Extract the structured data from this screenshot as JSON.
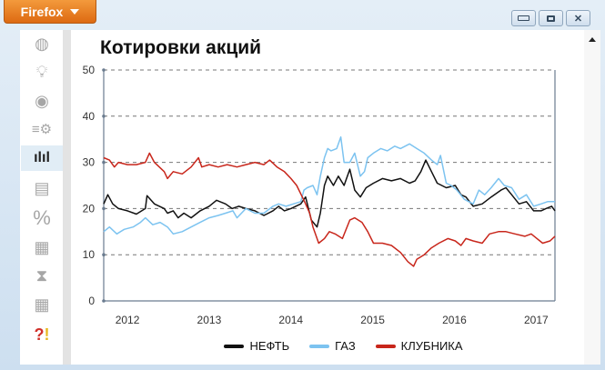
{
  "browser": {
    "menu_label": "Firefox"
  },
  "window_controls": {
    "minimize": "minimize-icon",
    "restore": "restore-icon",
    "close": "close-icon"
  },
  "sidebar": {
    "icons": [
      "globe-icon",
      "lightbulb-icon",
      "target-icon",
      "settings-list-icon",
      "bar-chart-icon",
      "document-icon",
      "percent-icon",
      "calendar-chart-icon",
      "hourglass-icon",
      "calendar-icon",
      "help-alert-icon"
    ],
    "active": 4
  },
  "colors": {
    "black": "#111111",
    "blue": "#7cc3f0",
    "red": "#c8261b",
    "accent": "#e07a1f"
  },
  "chart_data": {
    "type": "line",
    "title": "Котировки акций",
    "xlabel": "",
    "ylabel": "",
    "xlim": [
      2011.71,
      2017.23
    ],
    "ylim": [
      0,
      50
    ],
    "yticks": [
      0,
      10,
      20,
      30,
      40,
      50
    ],
    "xticks": [
      2012,
      2013,
      2014,
      2015,
      2016,
      2017
    ],
    "xtick_labels": [
      "2012",
      "2013",
      "2014",
      "2015",
      "2016",
      "2017"
    ],
    "ytick_labels": [
      "0",
      "10",
      "20",
      "30",
      "40",
      "50"
    ],
    "grid": "horizontal dashed",
    "legend_position": "bottom",
    "series": [
      {
        "name": "НЕФТЬ",
        "color": "#111111",
        "points": [
          [
            2011.71,
            21
          ],
          [
            2011.76,
            23
          ],
          [
            2011.82,
            21
          ],
          [
            2011.89,
            20
          ],
          [
            2012.0,
            19.5
          ],
          [
            2012.11,
            18.8
          ],
          [
            2012.22,
            20
          ],
          [
            2012.24,
            22.8
          ],
          [
            2012.33,
            21
          ],
          [
            2012.45,
            20
          ],
          [
            2012.49,
            19
          ],
          [
            2012.56,
            19.5
          ],
          [
            2012.62,
            18
          ],
          [
            2012.69,
            19
          ],
          [
            2012.78,
            18
          ],
          [
            2012.89,
            19.5
          ],
          [
            2013.0,
            20.5
          ],
          [
            2013.09,
            21.8
          ],
          [
            2013.2,
            21
          ],
          [
            2013.28,
            20
          ],
          [
            2013.36,
            20.5
          ],
          [
            2013.45,
            20
          ],
          [
            2013.56,
            19.5
          ],
          [
            2013.67,
            18.5
          ],
          [
            2013.78,
            19.5
          ],
          [
            2013.85,
            20.5
          ],
          [
            2013.92,
            19.5
          ],
          [
            2014.0,
            20
          ],
          [
            2014.12,
            21
          ],
          [
            2014.18,
            22.5
          ],
          [
            2014.25,
            17.5
          ],
          [
            2014.32,
            16
          ],
          [
            2014.36,
            19
          ],
          [
            2014.41,
            25
          ],
          [
            2014.45,
            27
          ],
          [
            2014.52,
            25
          ],
          [
            2014.58,
            27
          ],
          [
            2014.65,
            25
          ],
          [
            2014.72,
            28.5
          ],
          [
            2014.78,
            24
          ],
          [
            2014.85,
            22.5
          ],
          [
            2014.92,
            24.5
          ],
          [
            2015.01,
            25.5
          ],
          [
            2015.12,
            26.5
          ],
          [
            2015.23,
            26
          ],
          [
            2015.34,
            26.5
          ],
          [
            2015.45,
            25.5
          ],
          [
            2015.52,
            26
          ],
          [
            2015.59,
            28
          ],
          [
            2015.65,
            30.5
          ],
          [
            2015.72,
            28
          ],
          [
            2015.79,
            25.5
          ],
          [
            2015.9,
            24.5
          ],
          [
            2016.01,
            25
          ],
          [
            2016.08,
            23
          ],
          [
            2016.14,
            22.5
          ],
          [
            2016.23,
            20.5
          ],
          [
            2016.34,
            21
          ],
          [
            2016.45,
            22.5
          ],
          [
            2016.57,
            24
          ],
          [
            2016.63,
            24.5
          ],
          [
            2016.7,
            23
          ],
          [
            2016.79,
            21
          ],
          [
            2016.88,
            21.5
          ],
          [
            2016.97,
            19.5
          ],
          [
            2017.06,
            19.5
          ],
          [
            2017.12,
            20
          ],
          [
            2017.19,
            20.5
          ],
          [
            2017.23,
            19.5
          ]
        ]
      },
      {
        "name": "ГАЗ",
        "color": "#7cc3f0",
        "points": [
          [
            2011.71,
            15
          ],
          [
            2011.78,
            16
          ],
          [
            2011.87,
            14.5
          ],
          [
            2011.96,
            15.5
          ],
          [
            2012.07,
            16
          ],
          [
            2012.16,
            17
          ],
          [
            2012.22,
            18
          ],
          [
            2012.31,
            16.5
          ],
          [
            2012.4,
            17
          ],
          [
            2012.49,
            16
          ],
          [
            2012.56,
            14.5
          ],
          [
            2012.67,
            15
          ],
          [
            2012.78,
            16
          ],
          [
            2012.89,
            17
          ],
          [
            2013.0,
            18
          ],
          [
            2013.11,
            18.5
          ],
          [
            2013.2,
            19
          ],
          [
            2013.29,
            19.5
          ],
          [
            2013.34,
            18
          ],
          [
            2013.45,
            20
          ],
          [
            2013.56,
            19
          ],
          [
            2013.67,
            19
          ],
          [
            2013.78,
            20.5
          ],
          [
            2013.85,
            21
          ],
          [
            2013.94,
            20.5
          ],
          [
            2014.03,
            21
          ],
          [
            2014.12,
            21.5
          ],
          [
            2014.16,
            24
          ],
          [
            2014.2,
            24.5
          ],
          [
            2014.27,
            25
          ],
          [
            2014.32,
            23
          ],
          [
            2014.36,
            27
          ],
          [
            2014.41,
            31
          ],
          [
            2014.45,
            33
          ],
          [
            2014.49,
            32.5
          ],
          [
            2014.56,
            33
          ],
          [
            2014.61,
            35.5
          ],
          [
            2014.65,
            30
          ],
          [
            2014.72,
            30
          ],
          [
            2014.78,
            32
          ],
          [
            2014.85,
            27
          ],
          [
            2014.9,
            28
          ],
          [
            2014.94,
            31
          ],
          [
            2015.01,
            32
          ],
          [
            2015.1,
            33
          ],
          [
            2015.18,
            32.5
          ],
          [
            2015.27,
            33.5
          ],
          [
            2015.34,
            33
          ],
          [
            2015.45,
            34
          ],
          [
            2015.54,
            33
          ],
          [
            2015.63,
            32
          ],
          [
            2015.72,
            30.5
          ],
          [
            2015.79,
            29.5
          ],
          [
            2015.83,
            31.5
          ],
          [
            2015.9,
            25.5
          ],
          [
            2015.96,
            25
          ],
          [
            2016.03,
            24
          ],
          [
            2016.12,
            22
          ],
          [
            2016.23,
            21
          ],
          [
            2016.3,
            24
          ],
          [
            2016.37,
            23
          ],
          [
            2016.45,
            24.5
          ],
          [
            2016.54,
            26.5
          ],
          [
            2016.61,
            25
          ],
          [
            2016.7,
            24.5
          ],
          [
            2016.79,
            22
          ],
          [
            2016.88,
            23
          ],
          [
            2016.97,
            20.5
          ],
          [
            2017.06,
            21
          ],
          [
            2017.14,
            21.5
          ],
          [
            2017.23,
            21.5
          ]
        ]
      },
      {
        "name": "КЛУБНИКА",
        "color": "#c8261b",
        "points": [
          [
            2011.71,
            31
          ],
          [
            2011.78,
            30.5
          ],
          [
            2011.84,
            29
          ],
          [
            2011.89,
            30
          ],
          [
            2012.0,
            29.5
          ],
          [
            2012.11,
            29.5
          ],
          [
            2012.22,
            30
          ],
          [
            2012.27,
            32
          ],
          [
            2012.33,
            30
          ],
          [
            2012.45,
            28
          ],
          [
            2012.49,
            26.5
          ],
          [
            2012.56,
            28
          ],
          [
            2012.67,
            27.5
          ],
          [
            2012.78,
            29
          ],
          [
            2012.87,
            31
          ],
          [
            2012.91,
            29
          ],
          [
            2013.0,
            29.5
          ],
          [
            2013.11,
            29
          ],
          [
            2013.22,
            29.5
          ],
          [
            2013.34,
            29
          ],
          [
            2013.45,
            29.5
          ],
          [
            2013.56,
            30
          ],
          [
            2013.67,
            29.5
          ],
          [
            2013.74,
            30.5
          ],
          [
            2013.83,
            29
          ],
          [
            2013.92,
            28
          ],
          [
            2014.0,
            26.5
          ],
          [
            2014.07,
            25
          ],
          [
            2014.14,
            22.5
          ],
          [
            2014.18,
            21
          ],
          [
            2014.23,
            19
          ],
          [
            2014.27,
            16
          ],
          [
            2014.34,
            12.5
          ],
          [
            2014.41,
            13.5
          ],
          [
            2014.47,
            15
          ],
          [
            2014.54,
            14.5
          ],
          [
            2014.63,
            13.5
          ],
          [
            2014.72,
            17.5
          ],
          [
            2014.78,
            18
          ],
          [
            2014.87,
            17
          ],
          [
            2014.94,
            15
          ],
          [
            2015.01,
            12.5
          ],
          [
            2015.12,
            12.5
          ],
          [
            2015.23,
            12
          ],
          [
            2015.34,
            10.5
          ],
          [
            2015.43,
            8.5
          ],
          [
            2015.5,
            7.5
          ],
          [
            2015.54,
            9
          ],
          [
            2015.63,
            10
          ],
          [
            2015.72,
            11.5
          ],
          [
            2015.81,
            12.5
          ],
          [
            2015.92,
            13.5
          ],
          [
            2016.01,
            13
          ],
          [
            2016.08,
            12
          ],
          [
            2016.14,
            13.5
          ],
          [
            2016.23,
            13
          ],
          [
            2016.34,
            12.5
          ],
          [
            2016.43,
            14.5
          ],
          [
            2016.54,
            15
          ],
          [
            2016.63,
            15
          ],
          [
            2016.74,
            14.5
          ],
          [
            2016.86,
            14
          ],
          [
            2016.94,
            14.5
          ],
          [
            2017.01,
            13.5
          ],
          [
            2017.08,
            12.5
          ],
          [
            2017.17,
            13
          ],
          [
            2017.23,
            14
          ]
        ]
      }
    ]
  }
}
